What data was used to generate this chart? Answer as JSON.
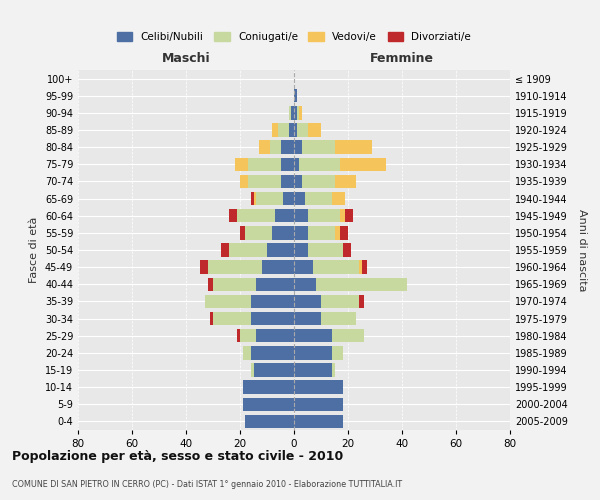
{
  "age_groups": [
    "0-4",
    "5-9",
    "10-14",
    "15-19",
    "20-24",
    "25-29",
    "30-34",
    "35-39",
    "40-44",
    "45-49",
    "50-54",
    "55-59",
    "60-64",
    "65-69",
    "70-74",
    "75-79",
    "80-84",
    "85-89",
    "90-94",
    "95-99",
    "100+"
  ],
  "birth_years": [
    "2005-2009",
    "2000-2004",
    "1995-1999",
    "1990-1994",
    "1985-1989",
    "1980-1984",
    "1975-1979",
    "1970-1974",
    "1965-1969",
    "1960-1964",
    "1955-1959",
    "1950-1954",
    "1945-1949",
    "1940-1944",
    "1935-1939",
    "1930-1934",
    "1925-1929",
    "1920-1924",
    "1915-1919",
    "1910-1914",
    "≤ 1909"
  ],
  "colors": {
    "celibe": "#4e6fa3",
    "coniugato": "#c8d9a0",
    "vedovo": "#f5c45a",
    "divorziato": "#c0292b"
  },
  "maschi": {
    "celibe": [
      18,
      19,
      19,
      15,
      16,
      14,
      16,
      16,
      14,
      12,
      10,
      8,
      7,
      4,
      5,
      5,
      5,
      2,
      1,
      0,
      0
    ],
    "coniugato": [
      0,
      0,
      0,
      1,
      3,
      6,
      14,
      17,
      16,
      20,
      14,
      10,
      14,
      10,
      12,
      12,
      4,
      4,
      1,
      0,
      0
    ],
    "vedovo": [
      0,
      0,
      0,
      0,
      0,
      0,
      0,
      0,
      0,
      0,
      0,
      0,
      0,
      1,
      3,
      5,
      4,
      2,
      0,
      0,
      0
    ],
    "divorziato": [
      0,
      0,
      0,
      0,
      0,
      1,
      1,
      0,
      2,
      3,
      3,
      2,
      3,
      1,
      0,
      0,
      0,
      0,
      0,
      0,
      0
    ]
  },
  "femmine": {
    "nubile": [
      18,
      18,
      18,
      14,
      14,
      14,
      10,
      10,
      8,
      7,
      5,
      5,
      5,
      4,
      3,
      2,
      3,
      1,
      1,
      1,
      0
    ],
    "coniugata": [
      0,
      0,
      0,
      1,
      4,
      12,
      13,
      14,
      34,
      17,
      13,
      10,
      12,
      10,
      12,
      15,
      12,
      4,
      1,
      0,
      0
    ],
    "vedova": [
      0,
      0,
      0,
      0,
      0,
      0,
      0,
      0,
      0,
      1,
      0,
      2,
      2,
      5,
      8,
      17,
      14,
      5,
      1,
      0,
      0
    ],
    "divorziata": [
      0,
      0,
      0,
      0,
      0,
      0,
      0,
      2,
      0,
      2,
      3,
      3,
      3,
      0,
      0,
      0,
      0,
      0,
      0,
      0,
      0
    ]
  },
  "xlim": 80,
  "title": "Popolazione per età, sesso e stato civile - 2010",
  "subtitle": "COMUNE DI SAN PIETRO IN CERRO (PC) - Dati ISTAT 1° gennaio 2010 - Elaborazione TUTTITALIA.IT",
  "xlabel_left": "Maschi",
  "xlabel_right": "Femmine",
  "ylabel_left": "Fasce di età",
  "ylabel_right": "Anni di nascita",
  "legend_labels": [
    "Celibi/Nubili",
    "Coniugati/e",
    "Vedovi/e",
    "Divorziati/e"
  ],
  "bg_color": "#f2f2f2",
  "grid_color": "#ffffff",
  "plot_bg": "#e8e8e8"
}
